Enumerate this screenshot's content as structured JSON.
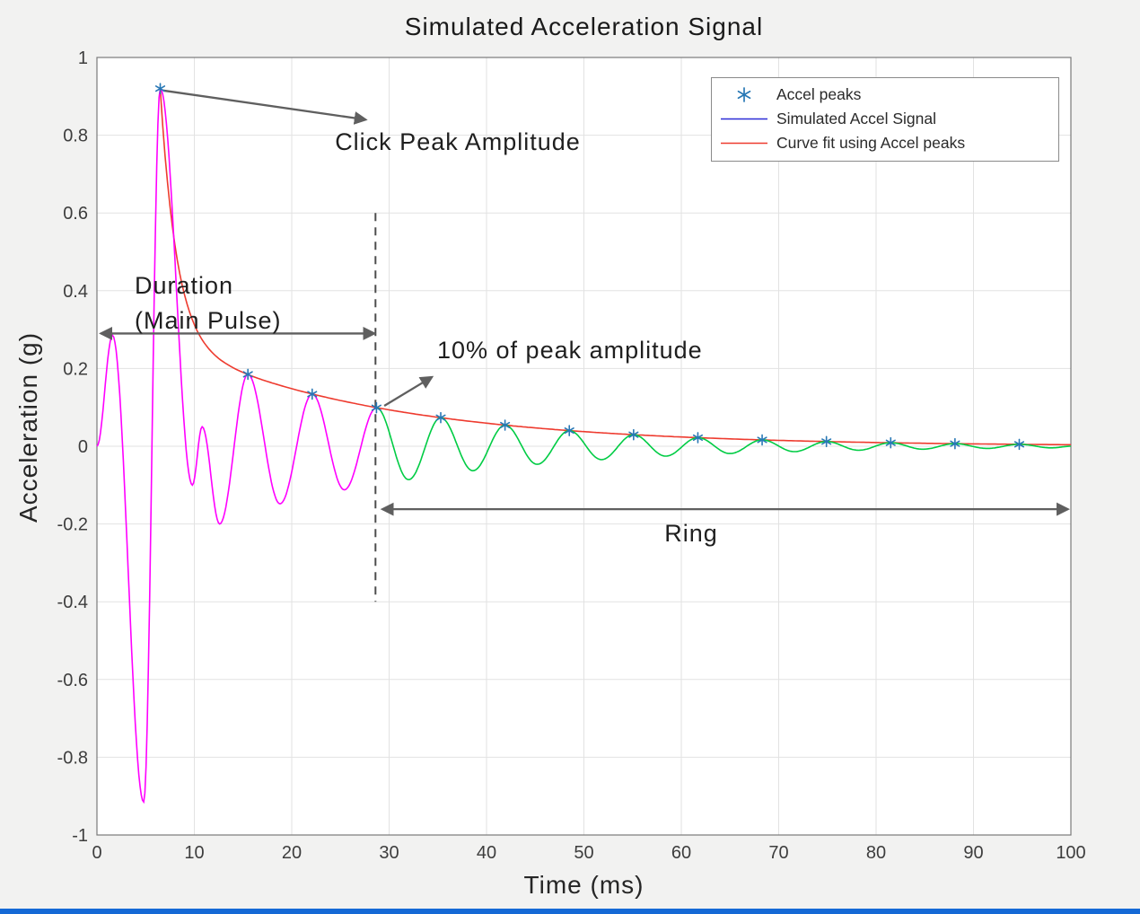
{
  "window": {
    "bottom_edge_color": "#1569d6"
  },
  "chart_data": {
    "type": "line",
    "title": "Simulated Acceleration Signal",
    "xlabel": "Time (ms)",
    "ylabel": "Acceleration (g)",
    "xlim": [
      0,
      100
    ],
    "ylim": [
      -1,
      1
    ],
    "xticks": [
      0,
      10,
      20,
      30,
      40,
      50,
      60,
      70,
      80,
      90,
      100
    ],
    "xtick_labels": [
      "0",
      "10",
      "20",
      "30",
      "40",
      "50",
      "60",
      "70",
      "80",
      "90",
      "100"
    ],
    "yticks": [
      -1,
      -0.8,
      -0.6,
      -0.4,
      -0.2,
      0,
      0.2,
      0.4,
      0.6,
      0.8,
      1
    ],
    "ytick_labels": [
      "-1",
      "-0.8",
      "-0.6",
      "-0.4",
      "-0.2",
      "0",
      "0.2",
      "0.4",
      "0.6",
      "0.8",
      "1"
    ],
    "grid": true,
    "colors": {
      "figure_background": "#f2f2f1",
      "plot_background": "#ffffff",
      "grid": "#e2e2e2",
      "axis_box": "#7a7a7a",
      "tick_labels": "#3d3d3d",
      "annotation": "#5f5f5f",
      "dashed_line": "#4d4d4d"
    },
    "legend": {
      "position": "top-right",
      "items": [
        {
          "label": "Accel peaks",
          "marker": "asterisk",
          "color": "#2878b5"
        },
        {
          "label": "Simulated Accel Signal",
          "marker": "line",
          "color": "#2b2bd6"
        },
        {
          "label": "Curve fit using Accel peaks",
          "marker": "line",
          "color": "#ee3b2f"
        }
      ]
    },
    "series": [
      {
        "name": "Simulated Accel Signal (main pulse)",
        "color": "#ff00ff",
        "render": "extrema",
        "extrema": [
          [
            0,
            0
          ],
          [
            1.6,
            0.285
          ],
          [
            4.8,
            -0.915
          ],
          [
            6.5,
            0.92
          ],
          [
            9.8,
            -0.1
          ],
          [
            10.8,
            0.05
          ],
          [
            12.6,
            -0.2
          ],
          [
            15.5,
            0.185
          ],
          [
            18.8,
            -0.148
          ],
          [
            22.1,
            0.134
          ],
          [
            25.4,
            -0.112
          ],
          [
            28.7,
            0.099
          ]
        ]
      },
      {
        "name": "Simulated Accel Signal (ring)",
        "color": "#00cc44",
        "render": "extrema",
        "extrema": [
          [
            28.7,
            0.099
          ],
          [
            32,
            -0.086
          ],
          [
            35.3,
            0.0735
          ],
          [
            38.6,
            -0.063
          ],
          [
            41.9,
            0.0543
          ],
          [
            45.2,
            -0.0465
          ],
          [
            48.5,
            0.0402
          ],
          [
            51.8,
            -0.0344
          ],
          [
            55.1,
            0.0297
          ],
          [
            58.4,
            -0.0255
          ],
          [
            61.7,
            0.022
          ],
          [
            65,
            -0.0188
          ],
          [
            68.3,
            0.0163
          ],
          [
            71.6,
            -0.0139
          ],
          [
            74.9,
            0.012
          ],
          [
            78.2,
            -0.0103
          ],
          [
            81.5,
            0.0089
          ],
          [
            84.8,
            -0.0076
          ],
          [
            88.1,
            0.0066
          ],
          [
            91.4,
            -0.0056
          ],
          [
            94.7,
            0.0049
          ],
          [
            98,
            -0.0042
          ],
          [
            100,
            0
          ]
        ]
      },
      {
        "name": "Curve fit using Accel peaks",
        "color": "#ee3b2f",
        "render": "double_exponential",
        "params": {
          "t0": 6.5,
          "a1": 0.646,
          "k1": 0.6,
          "a2": 0.274,
          "k2": 0.0457
        },
        "range": [
          6.5,
          100
        ]
      }
    ],
    "peaks": {
      "label": "Accel peaks",
      "color": "#2878b5",
      "points": [
        [
          6.5,
          0.92
        ],
        [
          15.5,
          0.185
        ],
        [
          22.1,
          0.134
        ],
        [
          28.7,
          0.099
        ],
        [
          35.3,
          0.0735
        ],
        [
          41.9,
          0.0543
        ],
        [
          48.5,
          0.0402
        ],
        [
          55.1,
          0.0297
        ],
        [
          61.7,
          0.022
        ],
        [
          68.3,
          0.0163
        ],
        [
          74.9,
          0.012
        ],
        [
          81.5,
          0.0089
        ],
        [
          88.1,
          0.0066
        ],
        [
          94.7,
          0.0049
        ]
      ]
    },
    "annotations": {
      "click_peak": {
        "label": "Click Peak Amplitude",
        "arrow": {
          "x1": 6.8,
          "y1": 0.915,
          "x2": 27.6,
          "y2": 0.84,
          "heads": "end"
        }
      },
      "duration": {
        "line1": "Duration",
        "line2": "(Main Pulse)",
        "arrow": {
          "x1": 0.4,
          "y1": 0.29,
          "x2": 28.5,
          "y2": 0.29,
          "heads": "both"
        }
      },
      "ten_percent": {
        "label": "10% of peak amplitude",
        "arrow": {
          "x1": 29.5,
          "y1": 0.104,
          "x2": 34.4,
          "y2": 0.178,
          "heads": "end"
        }
      },
      "ring": {
        "label": "Ring",
        "arrow": {
          "x1": 29.3,
          "y1": -0.162,
          "x2": 99.7,
          "y2": -0.162,
          "heads": "both"
        }
      },
      "threshold_line": {
        "x": 28.6,
        "y1": -0.4,
        "y2": 0.6,
        "style": "dashed"
      }
    }
  }
}
